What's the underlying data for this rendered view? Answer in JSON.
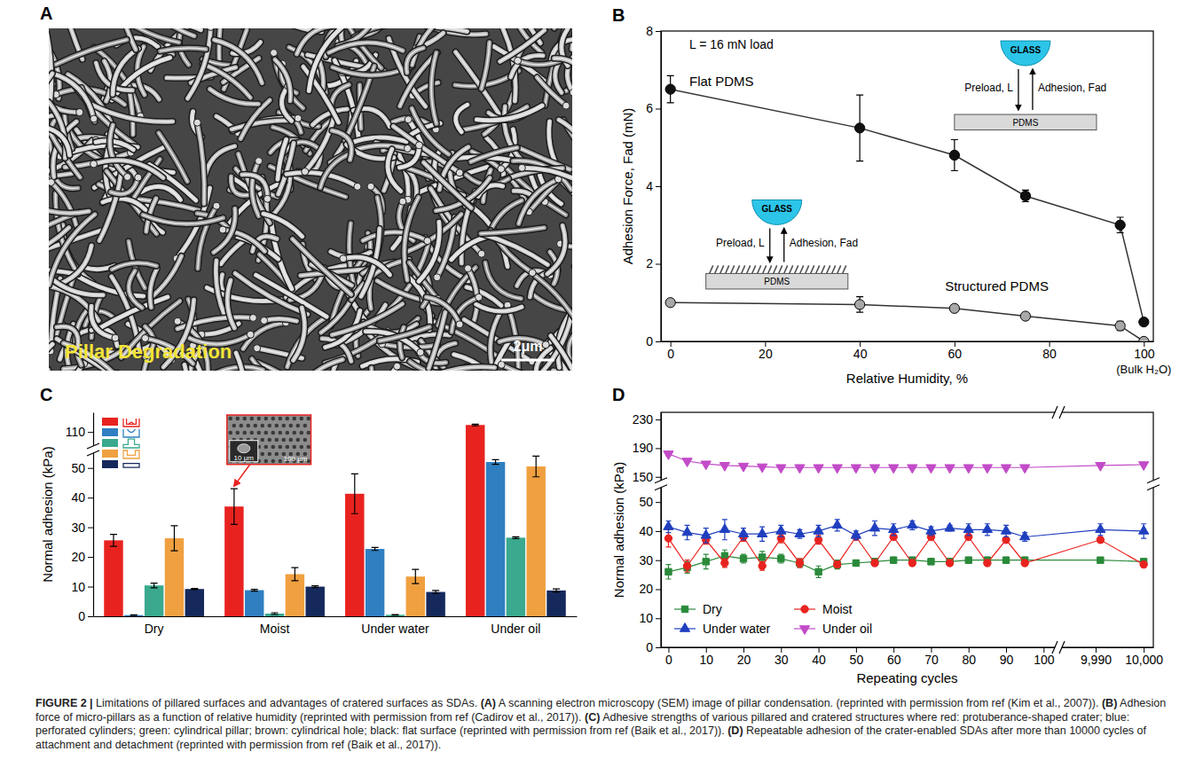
{
  "caption": "FIGURE 2 | Limitations of pillared surfaces and advantages of cratered surfaces as SDAs. (A) A scanning electron microscopy (SEM) image of pillar condensation. (reprinted with permission from ref (Kim et al., 2007)). (B) Adhesion force of micro-pillars as a function of relative humidity (reprinted with permission from ref (Cadirov et al., 2017)). (C) Adhesive strengths of various pillared and cratered structures where red: protuberance-shaped crater; blue: perforated cylinders; green: cylindrical pillar; brown: cylindrical hole; black: flat surface (reprinted with permission from ref (Baik et al., 2017)). (D) Repeatable adhesion of the crater-enabled SDAs after more than 10000 cycles of attachment and detachment (reprinted with permission from ref (Baik et al., 2017)).",
  "image_panel": {
    "label": "A",
    "annotation": "Pillar Degradation",
    "scale_bar": "2μm"
  },
  "chart_data": [
    {
      "label": "B",
      "type": "line",
      "xlabel": "Relative Humidity, %",
      "ylabel": "Adhesion Force, Fad (mN)",
      "annotations": [
        "L = 16 mN load",
        "(Bulk H₂O)"
      ],
      "insets": [
        [
          "GLASS",
          "Preload, L",
          "Adhesion, Fad",
          "PDMS"
        ],
        [
          "GLASS",
          "Preload, L",
          "Adhesion, Fad",
          "PDMS"
        ]
      ],
      "x": [
        0,
        40,
        60,
        75,
        95,
        100
      ],
      "xlim": [
        -2,
        102
      ],
      "xticks": [
        0,
        20,
        40,
        60,
        80,
        100
      ],
      "ylim": [
        0,
        8
      ],
      "yticks": [
        0,
        2,
        4,
        6,
        8
      ],
      "series": [
        {
          "name": "Flat PDMS",
          "color": "#111111",
          "marker": "circle",
          "values": [
            6.5,
            5.5,
            4.8,
            3.75,
            3.0,
            0.5
          ],
          "errors": [
            0.35,
            0.85,
            0.4,
            0.15,
            0.2,
            0.05
          ]
        },
        {
          "name": "Structured PDMS",
          "color": "#a8a8a8",
          "marker": "circle",
          "values": [
            1.0,
            0.95,
            0.85,
            0.65,
            0.4,
            0.0
          ],
          "errors": [
            0.08,
            0.2,
            0.08,
            0.08,
            0.12,
            0.03
          ]
        }
      ]
    },
    {
      "label": "C",
      "type": "bar",
      "ylabel": "Normal adhesion (kPa)",
      "categories": [
        "Dry",
        "Moist",
        "Under water",
        "Under oil"
      ],
      "ylim": [
        0,
        117
      ],
      "ybreak": [
        55,
        105
      ],
      "yticks": [
        0,
        10,
        20,
        30,
        40,
        50,
        110
      ],
      "legend": "upper left",
      "inset_labels": [
        "10 μm",
        "100 μm"
      ],
      "series": [
        {
          "color": "#e8231f",
          "values": [
            25.6,
            37,
            41.3,
            112.5
          ],
          "errors": [
            2,
            6,
            6.7,
            0.3
          ]
        },
        {
          "color": "#2f7fc1",
          "values": [
            0.4,
            8.8,
            22.7,
            52
          ],
          "errors": [
            0.1,
            0.3,
            0.5,
            0.8
          ]
        },
        {
          "color": "#3aa98e",
          "values": [
            10.4,
            0.9,
            0.5,
            26.5
          ],
          "errors": [
            0.8,
            0.3,
            0.1,
            0.3
          ]
        },
        {
          "color": "#f0a040",
          "values": [
            26.3,
            14.2,
            13.4,
            50.5
          ],
          "errors": [
            4.2,
            2.2,
            2.4,
            3.5
          ]
        },
        {
          "color": "#16295c",
          "values": [
            9.2,
            10,
            8.2,
            8.7
          ],
          "errors": [
            0.2,
            0.3,
            0.5,
            0.5
          ]
        }
      ]
    },
    {
      "label": "D",
      "type": "line",
      "xlabel": "Repeating cycles",
      "ylabel": "Normal adhesion (kPa)",
      "x": [
        0,
        5,
        10,
        15,
        20,
        25,
        30,
        35,
        40,
        45,
        50,
        55,
        60,
        65,
        70,
        75,
        80,
        85,
        90,
        95,
        9991,
        10000
      ],
      "xlim": [
        -2,
        10002
      ],
      "xbreak": [
        103,
        9983
      ],
      "xticks": [
        0,
        10,
        20,
        30,
        40,
        50,
        60,
        70,
        80,
        90,
        100,
        {
          "value": 9990,
          "label": "9,990"
        },
        {
          "value": 10000,
          "label": "10,000"
        }
      ],
      "ylim": [
        0,
        240
      ],
      "ybreak": [
        55,
        145
      ],
      "yticks": [
        0,
        10,
        20,
        30,
        40,
        50,
        150,
        190,
        230
      ],
      "legend": "lower left",
      "series": [
        {
          "name": "Dry",
          "color": "#2a8a3a",
          "marker": "square",
          "values": [
            26,
            27.5,
            29.5,
            31.5,
            30.5,
            31,
            30.5,
            29,
            26,
            28.5,
            29,
            29.5,
            30,
            30,
            29.5,
            29.5,
            30,
            30,
            30,
            30,
            30,
            29.5
          ],
          "errors": [
            2.5,
            2,
            2.5,
            2,
            1.5,
            2,
            1.5,
            1.5,
            2,
            1.5,
            1,
            1,
            1,
            1,
            1,
            1,
            1,
            1,
            1,
            1,
            0.8,
            0.8
          ]
        },
        {
          "name": "Moist",
          "color": "#e8231f",
          "marker": "circle",
          "values": [
            37.5,
            28,
            37,
            29,
            38,
            28,
            37.5,
            29,
            37,
            28.5,
            38,
            29,
            38,
            29,
            38,
            29,
            38,
            29,
            37,
            29,
            37,
            28.5
          ],
          "errors": [
            3,
            2,
            1.5,
            1.5,
            1.5,
            1.5,
            1.5,
            1.5,
            1.5,
            1,
            1,
            1,
            1,
            1,
            1,
            1,
            1,
            1,
            1,
            1,
            1,
            1
          ]
        },
        {
          "name": "Under water",
          "color": "#1f3fbf",
          "marker": "triangle-up",
          "values": [
            41.5,
            39.5,
            38.5,
            40.5,
            39,
            39,
            40,
            39,
            40,
            42,
            38.5,
            41,
            40.5,
            42,
            40,
            41,
            40.5,
            40.5,
            40,
            38,
            40.5,
            40
          ],
          "errors": [
            2,
            2.5,
            2.5,
            3.5,
            2,
            2.5,
            2,
            1.5,
            2,
            2,
            1.5,
            2.5,
            2,
            1.5,
            1.5,
            1,
            2,
            2,
            2,
            1.5,
            2,
            2.5
          ]
        },
        {
          "name": "Under oil",
          "color": "#c24bc8",
          "marker": "triangle-down",
          "values": [
            182,
            172,
            168,
            166,
            165,
            164,
            163,
            163,
            163,
            163,
            163,
            163,
            163,
            163,
            163,
            163,
            163,
            163,
            163,
            163,
            166,
            167
          ],
          "errors": [
            3,
            2,
            2,
            1.5,
            1.5,
            1.5,
            1.5,
            1.5,
            1.5,
            1.5,
            1.5,
            1.5,
            1.5,
            1.5,
            1.5,
            1.5,
            1.5,
            1.5,
            1.5,
            1.5,
            1.5,
            1.5
          ]
        }
      ]
    }
  ]
}
